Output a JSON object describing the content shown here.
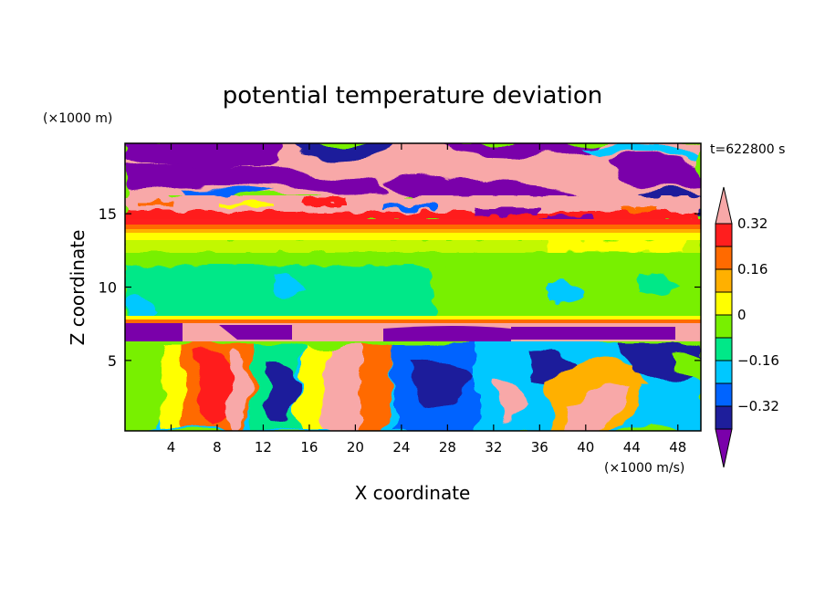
{
  "chart_data": {
    "type": "heatmap",
    "title": "potential temperature deviation",
    "time_label": "t=622800 s",
    "xlabel": "X coordinate",
    "ylabel": "Z coordinate",
    "x_unit": "(×1000 m/s)",
    "y_unit": "(×1000 m)",
    "xlim": [
      0,
      50
    ],
    "ylim": [
      0.2,
      19.8
    ],
    "x_ticks": [
      4,
      8,
      12,
      16,
      20,
      24,
      28,
      32,
      36,
      40,
      44,
      48
    ],
    "x_tick_labels": [
      "4",
      "8",
      "12",
      "16",
      "20",
      "24",
      "28",
      "32",
      "36",
      "40",
      "44",
      "48"
    ],
    "y_ticks": [
      5,
      10,
      15
    ],
    "y_tick_labels": [
      "5",
      "10",
      "15"
    ],
    "colorbar": {
      "colors": [
        "#7a00aa",
        "#1e1e9b",
        "#0064ff",
        "#00c8ff",
        "#00e888",
        "#78f000",
        "#ffff00",
        "#ffb000",
        "#ff6a00",
        "#ff1e1e",
        "#f8a8a8"
      ],
      "levels": [
        -0.4,
        -0.32,
        -0.24,
        -0.16,
        -0.08,
        0,
        0.08,
        0.16,
        0.24,
        0.32,
        0.4
      ],
      "tick_labels": [
        "0.32",
        "0.16",
        "0",
        "−0.16",
        "−0.32"
      ],
      "tick_values": [
        0.32,
        0.16,
        0,
        -0.16,
        -0.32
      ],
      "extend": "both"
    },
    "layers": [
      {
        "z_range": [
          17.5,
          19.8
        ],
        "value": "mixed, mostly > 0.40 and < -0.40"
      },
      {
        "z_range": [
          14,
          17.5
        ],
        "value": "mixed, patchy"
      },
      {
        "z_range": [
          13.6,
          14.4
        ],
        "value": "0.32 to 0.40"
      },
      {
        "z_range": [
          13,
          13.6
        ],
        "value": "0.08 to 0.16"
      },
      {
        "z_range": [
          11.5,
          13
        ],
        "value": "0 to 0.08"
      },
      {
        "z_range": [
          7.9,
          11.5
        ],
        "value": "-0.08 to 0.08"
      },
      {
        "z_range": [
          7.3,
          7.9
        ],
        "value": "0.16 to 0.32"
      },
      {
        "z_range": [
          6,
          7.3
        ],
        "value": "> 0.40 and < -0.40"
      },
      {
        "z_range": [
          0.2,
          6
        ],
        "value": "turbulent, -0.40 to 0.40"
      }
    ]
  }
}
